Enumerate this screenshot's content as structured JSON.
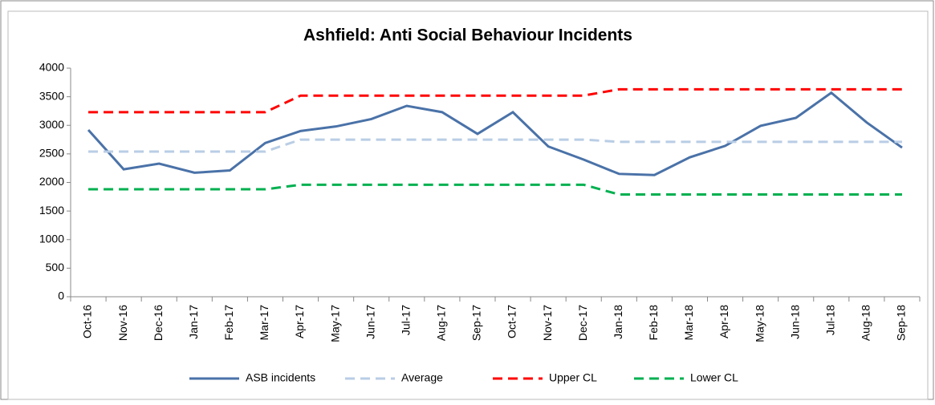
{
  "chart_data": {
    "type": "line",
    "title": "Ashfield: Anti Social Behaviour Incidents",
    "categories": [
      "Oct-16",
      "Nov-16",
      "Dec-16",
      "Jan-17",
      "Feb-17",
      "Mar-17",
      "Apr-17",
      "May-17",
      "Jun-17",
      "Jul-17",
      "Aug-17",
      "Sep-17",
      "Oct-17",
      "Nov-17",
      "Dec-17",
      "Jan-18",
      "Feb-18",
      "Mar-18",
      "Apr-18",
      "May-18",
      "Jun-18",
      "Jul-18",
      "Aug-18",
      "Sep-18"
    ],
    "series": [
      {
        "name": "ASB incidents",
        "color": "#4a72a8",
        "dash": false,
        "values": [
          2920,
          2230,
          2330,
          2170,
          2210,
          2690,
          2900,
          2980,
          3110,
          3340,
          3230,
          2850,
          3230,
          2630,
          2400,
          2150,
          2130,
          2440,
          2640,
          2990,
          3130,
          3570,
          3050,
          2610
        ]
      },
      {
        "name": "Average",
        "color": "#b9cde5",
        "dash": true,
        "values": [
          2540,
          2540,
          2540,
          2540,
          2540,
          2540,
          2750,
          2750,
          2750,
          2750,
          2750,
          2750,
          2750,
          2750,
          2750,
          2710,
          2710,
          2710,
          2710,
          2710,
          2710,
          2710,
          2710,
          2710
        ]
      },
      {
        "name": "Upper CL",
        "color": "#ff0000",
        "dash": true,
        "values": [
          3230,
          3230,
          3230,
          3230,
          3230,
          3230,
          3520,
          3520,
          3520,
          3520,
          3520,
          3520,
          3520,
          3520,
          3520,
          3630,
          3630,
          3630,
          3630,
          3630,
          3630,
          3630,
          3630,
          3630
        ]
      },
      {
        "name": "Lower CL",
        "color": "#00b050",
        "dash": true,
        "values": [
          1880,
          1880,
          1880,
          1880,
          1880,
          1880,
          1960,
          1960,
          1960,
          1960,
          1960,
          1960,
          1960,
          1960,
          1960,
          1790,
          1790,
          1790,
          1790,
          1790,
          1790,
          1790,
          1790,
          1790
        ]
      }
    ],
    "ylim": [
      0,
      4000
    ],
    "yticks": [
      0,
      500,
      1000,
      1500,
      2000,
      2500,
      3000,
      3500,
      4000
    ],
    "grid": false,
    "legend": "bottom"
  }
}
